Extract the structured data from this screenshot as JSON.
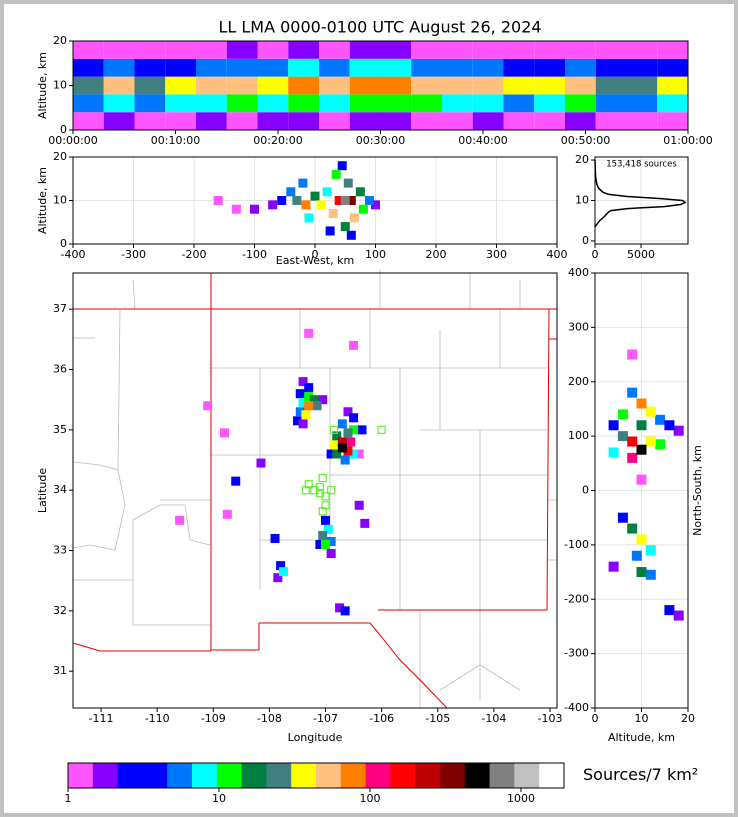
{
  "chart_data": [
    {
      "type": "heatmap",
      "title": "LL LMA 0000-0100 UTC August 26, 2024",
      "ylabel": "Altitude, km",
      "xlim": [
        0,
        60
      ],
      "xticks": [
        {
          "value": 0,
          "label": "00:00:00"
        },
        {
          "value": 10,
          "label": "00:10:00"
        },
        {
          "value": 20,
          "label": "00:20:00"
        },
        {
          "value": 30,
          "label": "00:30:00"
        },
        {
          "value": 40,
          "label": "00:40:00"
        },
        {
          "value": 50,
          "label": "00:50:00"
        },
        {
          "value": 60,
          "label": "01:00:00"
        }
      ],
      "ylim": [
        0,
        20
      ],
      "yticks": [
        0,
        10,
        20
      ],
      "grid": true,
      "x": [
        1.5,
        4.5,
        7.5,
        10.5,
        13.5,
        16.5,
        19.5,
        22.5,
        25.5,
        28.5,
        31.5,
        34.5,
        37.5,
        40.5,
        43.5,
        46.5,
        49.5,
        52.5,
        55.5,
        58.5
      ],
      "y": [
        2,
        6,
        10,
        14,
        18
      ],
      "counts": [
        [
          1,
          2,
          1,
          1,
          2,
          1,
          2,
          2,
          1,
          2,
          2,
          1,
          1,
          2,
          1,
          1,
          2,
          1,
          1,
          1
        ],
        [
          6,
          8,
          5,
          7,
          9,
          10,
          8,
          12,
          9,
          11,
          14,
          10,
          8,
          9,
          6,
          7,
          10,
          6,
          5,
          7
        ],
        [
          30,
          45,
          25,
          35,
          50,
          60,
          40,
          70,
          55,
          65,
          80,
          60,
          45,
          50,
          35,
          40,
          55,
          30,
          30,
          35
        ],
        [
          4,
          5,
          3,
          4,
          6,
          6,
          5,
          8,
          6,
          7,
          9,
          6,
          5,
          6,
          4,
          4,
          6,
          3,
          3,
          4
        ],
        [
          1,
          1,
          1,
          1,
          1,
          2,
          1,
          2,
          1,
          2,
          2,
          1,
          1,
          1,
          1,
          1,
          1,
          1,
          1,
          1
        ]
      ]
    },
    {
      "type": "density",
      "xlabel": "East-West, km",
      "ylabel": "Altitude, km",
      "xlim": [
        -400,
        400
      ],
      "xticks": [
        -400,
        -300,
        -200,
        -100,
        0,
        100,
        200,
        300,
        400
      ],
      "ylim": [
        0,
        20
      ],
      "yticks": [
        0,
        10,
        20
      ],
      "grid": true,
      "x": [
        -160,
        -130,
        -100,
        -70,
        -55,
        -40,
        -20,
        -10,
        25,
        60,
        45,
        100,
        90,
        80,
        20,
        -30,
        0,
        35,
        50,
        75,
        -15,
        10,
        55,
        30,
        65,
        40,
        60,
        50
      ],
      "y": [
        10,
        8,
        8,
        9,
        10,
        12,
        14,
        6,
        3,
        2,
        18,
        9,
        10,
        8,
        12,
        10,
        11,
        16,
        4,
        12,
        9,
        9,
        14,
        7,
        6,
        10,
        10,
        10
      ],
      "counts": [
        1,
        1,
        2,
        2,
        4,
        6,
        5,
        8,
        3,
        3,
        4,
        2,
        5,
        10,
        8,
        30,
        20,
        10,
        15,
        20,
        80,
        40,
        30,
        50,
        60,
        150,
        300,
        800
      ]
    },
    {
      "type": "line",
      "orientation": "horizontal",
      "annotation": "153,418 sources",
      "color": "#000000",
      "xlim": [
        0,
        10100
      ],
      "xticks": [
        0,
        5000
      ],
      "ylim": [
        -0.75,
        20.75
      ],
      "yticks": [
        0,
        10,
        20
      ],
      "grid": true,
      "x": [
        3.5,
        5,
        6,
        7,
        7.5,
        8,
        8.5,
        9,
        9.5,
        10,
        10.5,
        11,
        11.5,
        12,
        13,
        14,
        16,
        20
      ],
      "values": [
        0,
        500,
        1000,
        1400,
        1700,
        3500,
        7500,
        9300,
        9800,
        9500,
        7000,
        3500,
        1500,
        900,
        400,
        200,
        60,
        0
      ]
    },
    {
      "type": "map",
      "xlabel": "Longitude",
      "ylabel": "Latitude",
      "xlim": [
        -111.5,
        -102.875
      ],
      "xticks": [
        -111,
        -110,
        -109,
        -108,
        -107,
        -106,
        -105,
        -104,
        -103
      ],
      "ylim": [
        30.39,
        37.6
      ],
      "yticks": [
        31,
        32,
        33,
        34,
        35,
        36,
        37
      ],
      "grid": false,
      "x": [
        -109.1,
        -108.8,
        -108.15,
        -108.6,
        -106.4,
        -106.3,
        -106.5,
        -107.3,
        -108.75,
        -109.6,
        -107.4,
        -107.3,
        -107.45,
        -107.5,
        -107.4,
        -107.05,
        -107.45,
        -107.4,
        -107.3,
        -107.2,
        -107.15,
        -107.35,
        -107.3,
        -106.6,
        -106.5,
        -106.4,
        -106.35,
        -106.7,
        -106.9,
        -106.5,
        -106.65,
        -106.5,
        -106.8,
        -106.8,
        -106.85,
        -106.6,
        -106.55,
        -106.6,
        -106.7,
        -106.7,
        -107.0,
        -106.9,
        -107.1,
        -106.9,
        -107.0,
        -106.95,
        -107.05,
        -107.85,
        -107.9,
        -107.8,
        -107.75,
        -106.75,
        -106.65
      ],
      "y": [
        35.4,
        34.95,
        34.45,
        34.15,
        33.75,
        33.45,
        36.4,
        36.6,
        33.6,
        33.5,
        35.8,
        35.7,
        35.6,
        35.15,
        35.1,
        35.5,
        35.3,
        35.45,
        35.55,
        35.5,
        35.4,
        35.25,
        35.4,
        35.3,
        35.2,
        34.6,
        35.0,
        35.1,
        34.6,
        34.6,
        34.5,
        35.0,
        34.6,
        34.9,
        34.75,
        34.95,
        34.8,
        34.65,
        34.8,
        34.7,
        33.5,
        32.95,
        33.1,
        33.15,
        33.1,
        33.35,
        33.25,
        32.55,
        33.2,
        32.75,
        32.65,
        32.05,
        32.0
      ],
      "counts": [
        1,
        1,
        2,
        3,
        2,
        2,
        1,
        1,
        1,
        1,
        2,
        3,
        4,
        3,
        2,
        2,
        6,
        8,
        12,
        20,
        30,
        40,
        90,
        2,
        3,
        1,
        3,
        5,
        4,
        8,
        5,
        10,
        15,
        20,
        40,
        30,
        100,
        150,
        200,
        600,
        3,
        2,
        3,
        6,
        12,
        8,
        25,
        2,
        3,
        4,
        8,
        2,
        3
      ],
      "stations": {
        "color": "#66ee33",
        "lon": [
          -107.05,
          -107.3,
          -107.35,
          -107.1,
          -106.9,
          -107.2,
          -107.0,
          -107.0,
          -107.05,
          -106.85,
          -106.0,
          -107.1
        ],
        "lat": [
          34.2,
          34.1,
          34.0,
          34.05,
          34.0,
          34.0,
          33.9,
          33.75,
          33.65,
          35.0,
          35.0,
          33.95
        ]
      }
    },
    {
      "type": "density",
      "xlabel": "Altitude, km",
      "ylabel": "North-South, km",
      "ylabel_side": "right",
      "xlim": [
        0,
        20
      ],
      "xticks": [
        0,
        10,
        20
      ],
      "ylim": [
        -400,
        400
      ],
      "yticks": [
        -400,
        -300,
        -200,
        -100,
        0,
        100,
        200,
        300,
        400
      ],
      "grid": true,
      "x": [
        10,
        8,
        18,
        16,
        4,
        6,
        14,
        8,
        18,
        16,
        4,
        14,
        6,
        9,
        12,
        12,
        10,
        4,
        12,
        8,
        6,
        10,
        10,
        8,
        12,
        10,
        8,
        10
      ],
      "y": [
        20,
        250,
        110,
        -220,
        120,
        140,
        130,
        180,
        -230,
        120,
        -140,
        85,
        -50,
        -120,
        -155,
        -110,
        -150,
        70,
        145,
        -70,
        100,
        120,
        -90,
        60,
        90,
        160,
        90,
        75
      ],
      "counts": [
        1,
        1,
        2,
        3,
        3,
        10,
        6,
        5,
        2,
        3,
        2,
        10,
        3,
        5,
        5,
        8,
        15,
        8,
        40,
        20,
        30,
        20,
        40,
        100,
        40,
        80,
        150,
        600
      ]
    },
    {
      "type": "colorbar",
      "label": "Sources/7 km²",
      "xlog": true,
      "xlim": [
        1,
        1928
      ],
      "xticks": [
        1,
        10,
        100,
        1000
      ],
      "colors": [
        "#ff55ff",
        "#8800ff",
        "#0000ff",
        "#0000ff",
        "#0077ff",
        "#00ffff",
        "#00ff00",
        "#008040",
        "#408080",
        "#ffff00",
        "#ffc080",
        "#ff8000",
        "#ff0080",
        "#ff0000",
        "#c00000",
        "#800000",
        "#000000",
        "#808080",
        "#c0c0c0",
        "#ffffff"
      ]
    }
  ]
}
